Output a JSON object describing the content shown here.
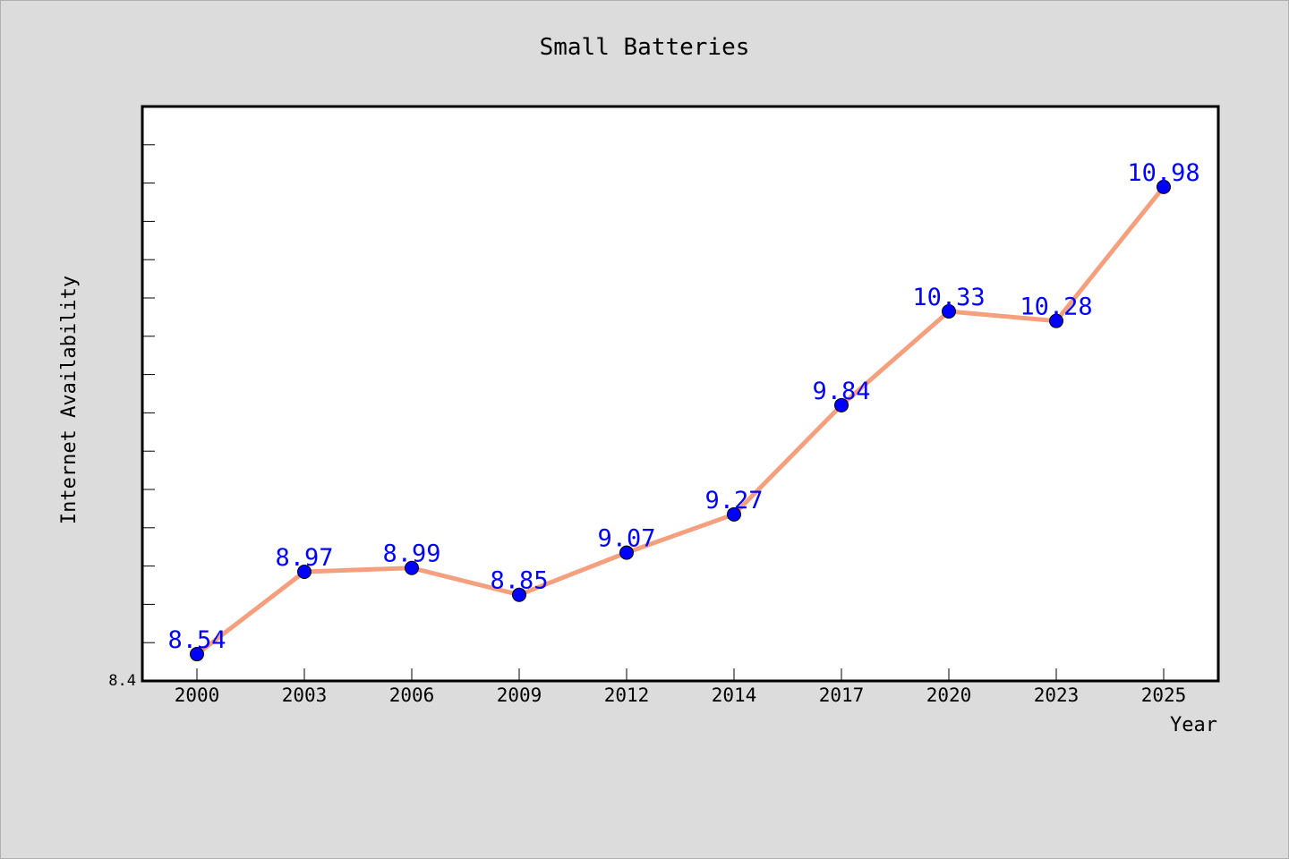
{
  "chart_data": {
    "type": "line",
    "title": "Small Batteries",
    "xlabel": "Year",
    "ylabel": "Internet Availability",
    "categories": [
      "2000",
      "2003",
      "2006",
      "2009",
      "2012",
      "2014",
      "2017",
      "2020",
      "2023",
      "2025"
    ],
    "series": [
      {
        "values": [
          8.54,
          8.97,
          8.99,
          8.85,
          9.07,
          9.27,
          9.84,
          10.33,
          10.28,
          10.98
        ],
        "line_color": "#f4a07e",
        "marker_color": "#0000ff",
        "label_color": "#0000ff"
      }
    ],
    "y_tick_labels": [
      "8.4"
    ],
    "ylim": [
      8.4,
      11.4
    ],
    "grid": false,
    "legend": "none",
    "background": "#dcdcdc",
    "plot_background": "#ffffff"
  }
}
